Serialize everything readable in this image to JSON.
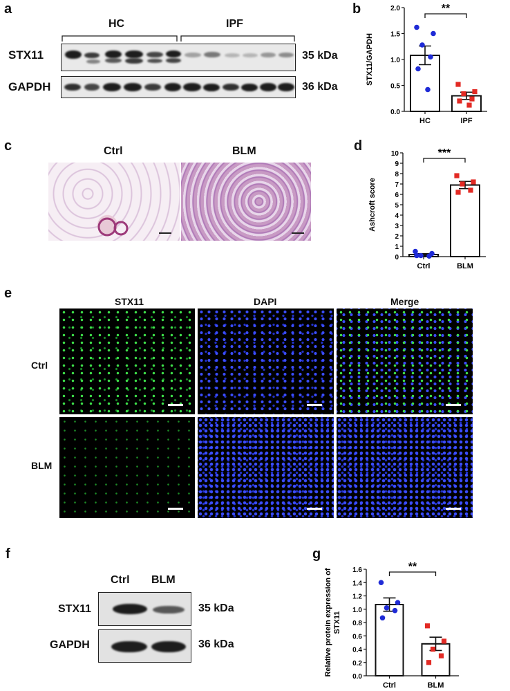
{
  "panels": {
    "a": {
      "letter": "a",
      "groups": [
        "HC",
        "IPF"
      ],
      "rows": [
        {
          "label": "STX11",
          "kda": "35 kDa"
        },
        {
          "label": "GAPDH",
          "kda": "36 kDa"
        }
      ]
    },
    "b": {
      "letter": "b"
    },
    "c": {
      "letter": "c",
      "conditions": [
        "Ctrl",
        "BLM"
      ]
    },
    "d": {
      "letter": "d"
    },
    "e": {
      "letter": "e",
      "columns": [
        "STX11",
        "DAPI",
        "Merge"
      ],
      "rows": [
        "Ctrl",
        "BLM"
      ]
    },
    "f": {
      "letter": "f",
      "groups": [
        "Ctrl",
        "BLM"
      ],
      "rows": [
        {
          "label": "STX11",
          "kda": "35 kDa"
        },
        {
          "label": "GAPDH",
          "kda": "36 kDa"
        }
      ]
    },
    "g": {
      "letter": "g"
    }
  },
  "chart_data": [
    {
      "panel": "b",
      "type": "bar",
      "categories": [
        "HC",
        "IPF"
      ],
      "ylabel": "STX11/GAPDH",
      "xlabel": "",
      "ylim": [
        0,
        2.0
      ],
      "yticks": [
        "0.0",
        "0.5",
        "1.0",
        "1.5",
        "2.0"
      ],
      "means": [
        1.08,
        0.3
      ],
      "sem": [
        0.18,
        0.07
      ],
      "points": [
        [
          1.62,
          1.5,
          1.28,
          1.05,
          0.82,
          0.42
        ],
        [
          0.52,
          0.38,
          0.34,
          0.24,
          0.2,
          0.12
        ]
      ],
      "point_colors": [
        "#1f2bd6",
        "#e22a24"
      ],
      "significance": "**"
    },
    {
      "panel": "d",
      "type": "bar",
      "categories": [
        "Ctrl",
        "BLM"
      ],
      "ylabel": "Ashcroft score",
      "xlabel": "",
      "ylim": [
        0,
        10
      ],
      "yticks": [
        "0",
        "1",
        "2",
        "3",
        "4",
        "5",
        "6",
        "7",
        "8",
        "9",
        "10"
      ],
      "means": [
        0.2,
        6.9
      ],
      "sem": [
        0.08,
        0.35
      ],
      "points": [
        [
          0.5,
          0.3,
          0.1,
          0.05,
          0.1
        ],
        [
          7.8,
          7.2,
          7.0,
          6.4,
          6.2
        ]
      ],
      "point_colors": [
        "#1f2bd6",
        "#e22a24"
      ],
      "significance": "***"
    },
    {
      "panel": "g",
      "type": "bar",
      "categories": [
        "Ctrl",
        "BLM"
      ],
      "ylabel": "Relative protein expression of STX11",
      "xlabel": "",
      "ylim": [
        0,
        1.6
      ],
      "yticks": [
        "0.0",
        "0.2",
        "0.4",
        "0.6",
        "0.8",
        "1.0",
        "1.2",
        "1.4",
        "1.6"
      ],
      "means": [
        1.07,
        0.48
      ],
      "sem": [
        0.1,
        0.1
      ],
      "points": [
        [
          1.4,
          1.1,
          1.02,
          0.98,
          0.87
        ],
        [
          0.75,
          0.52,
          0.4,
          0.3,
          0.2
        ]
      ],
      "point_colors": [
        "#1f2bd6",
        "#e22a24"
      ],
      "significance": "**"
    }
  ]
}
